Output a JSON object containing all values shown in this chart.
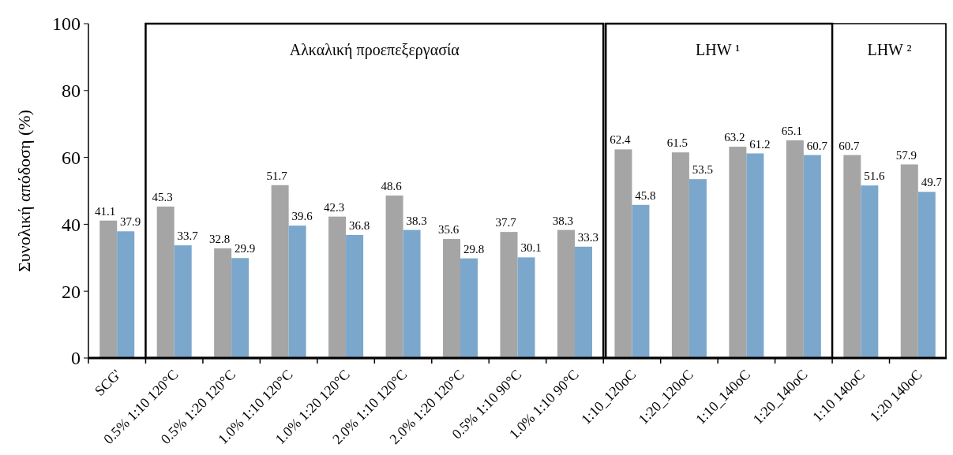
{
  "chart_data": {
    "type": "bar",
    "ylabel": "Συνολική απόδοση (%)",
    "categories": [
      "SCG'",
      "0.5% 1:10 120°C",
      "0.5% 1:20 120°C",
      "1.0% 1:10 120°C",
      "1.0% 1:20 120°C",
      "2.0% 1:10 120°C",
      "2.0% 1:20 120°C",
      "0.5% 1:10 90°C",
      "1.0% 1:10 90°C",
      "1:10_120oC",
      "1:20_120oC",
      "1:10_140oC",
      "1:20_140oC",
      "1:10 140oC",
      "1:20 140oC"
    ],
    "series": [
      {
        "color": "#a5a5a5",
        "values": [
          41.1,
          45.3,
          32.8,
          51.7,
          42.3,
          48.6,
          35.6,
          37.7,
          38.3,
          62.4,
          61.5,
          63.2,
          65.1,
          60.7,
          57.9
        ]
      },
      {
        "color": "#7ba7cc",
        "values": [
          37.9,
          33.7,
          29.9,
          39.6,
          36.8,
          38.3,
          29.8,
          30.1,
          33.3,
          45.8,
          53.5,
          61.2,
          60.7,
          51.6,
          49.7
        ]
      }
    ],
    "ylim": [
      0,
      100
    ],
    "yticks": [
      0,
      20,
      40,
      60,
      80,
      100
    ],
    "data_labels": true,
    "annotations": [
      "Αλκαλική προεπεξεργασία",
      "LHW ¹",
      "LHW ²"
    ]
  }
}
